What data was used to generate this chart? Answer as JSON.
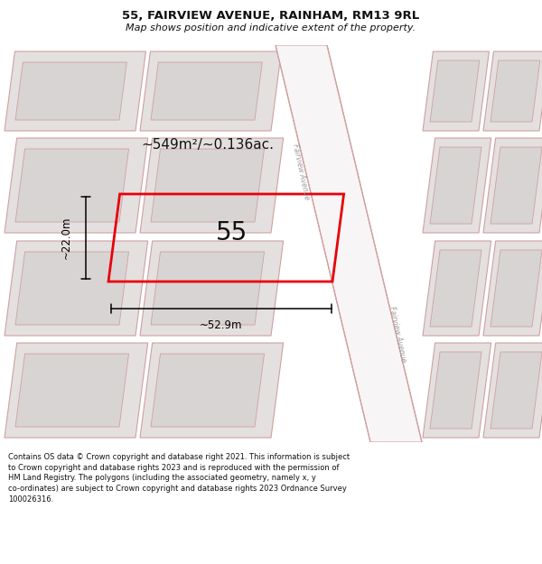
{
  "title_line1": "55, FAIRVIEW AVENUE, RAINHAM, RM13 9RL",
  "title_line2": "Map shows position and indicative extent of the property.",
  "area_label": "~549m²/~0.136ac.",
  "number_label": "55",
  "width_label": "~52.9m",
  "height_label": "~22.0m",
  "road_label": "Fairview Avenue",
  "footer_text": "Contains OS data © Crown copyright and database right 2021. This information is subject to Crown copyright and database rights 2023 and is reproduced with the permission of HM Land Registry. The polygons (including the associated geometry, namely x, y co-ordinates) are subject to Crown copyright and database rights 2023 Ordnance Survey 100026316.",
  "bg_color": "#ffffff",
  "map_bg": "#f0eeee",
  "block_fill": "#e4e0e0",
  "block_edge": "#d0a0a0",
  "road_fill": "#f7f5f5",
  "road_edge": "#d0a0a0",
  "highlight_edge": "#e8000a",
  "title_color": "#111111",
  "footer_color": "#111111",
  "title_fontsize": 9.5,
  "subtitle_fontsize": 8.0,
  "footer_fontsize": 6.0
}
